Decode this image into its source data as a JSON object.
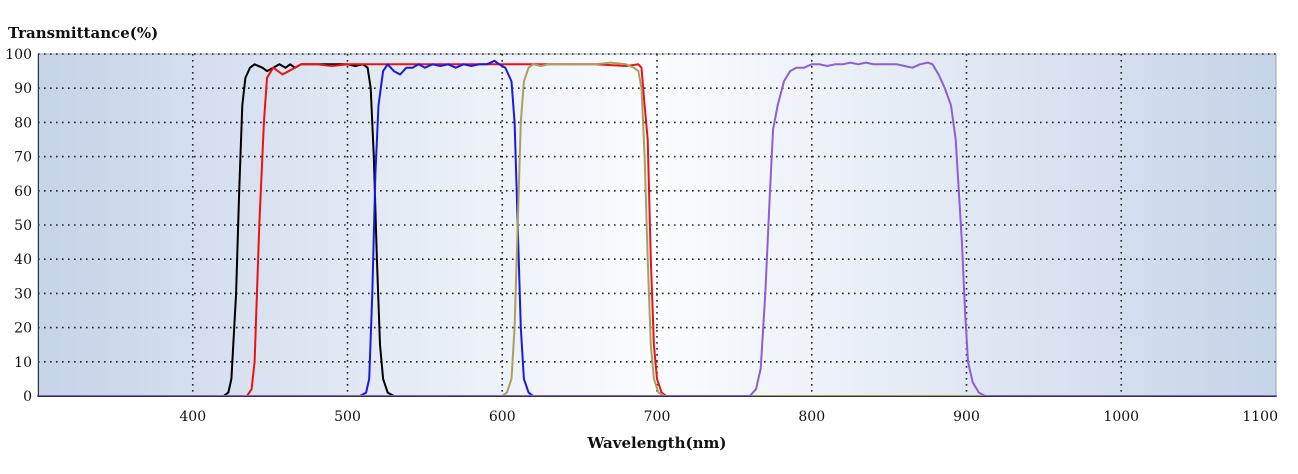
{
  "chart_data": {
    "type": "line",
    "ylabel": "Transmittance(%)",
    "xlabel": "Wavelength(nm)",
    "xlim": [
      300,
      1100
    ],
    "ylim": [
      0,
      100
    ],
    "xticks": [
      400,
      500,
      600,
      700,
      800,
      900,
      1000,
      1100
    ],
    "yticks": [
      0,
      10,
      20,
      30,
      40,
      50,
      60,
      70,
      80,
      90,
      100
    ],
    "grid": true,
    "legend": "none",
    "series": [
      {
        "color": "#000000",
        "points": [
          [
            300,
            0
          ],
          [
            420,
            0
          ],
          [
            423,
            1
          ],
          [
            425,
            5
          ],
          [
            428,
            30
          ],
          [
            430,
            60
          ],
          [
            432,
            85
          ],
          [
            434,
            93
          ],
          [
            437,
            96
          ],
          [
            440,
            97
          ],
          [
            445,
            96
          ],
          [
            448,
            95
          ],
          [
            452,
            96
          ],
          [
            456,
            97
          ],
          [
            460,
            96
          ],
          [
            463,
            97
          ],
          [
            466,
            96
          ],
          [
            470,
            97
          ],
          [
            480,
            97
          ],
          [
            490,
            97
          ],
          [
            500,
            97
          ],
          [
            505,
            96.5
          ],
          [
            510,
            97
          ],
          [
            513,
            96
          ],
          [
            515,
            90
          ],
          [
            517,
            70
          ],
          [
            519,
            40
          ],
          [
            521,
            15
          ],
          [
            523,
            5
          ],
          [
            526,
            1
          ],
          [
            530,
            0
          ],
          [
            1100,
            0
          ]
        ]
      },
      {
        "color": "#ee1111",
        "points": [
          [
            300,
            0
          ],
          [
            435,
            0
          ],
          [
            438,
            2
          ],
          [
            440,
            10
          ],
          [
            443,
            50
          ],
          [
            446,
            80
          ],
          [
            448,
            93
          ],
          [
            452,
            96
          ],
          [
            455,
            95
          ],
          [
            458,
            94
          ],
          [
            462,
            95
          ],
          [
            466,
            96
          ],
          [
            470,
            97
          ],
          [
            480,
            97
          ],
          [
            490,
            96.5
          ],
          [
            500,
            97
          ],
          [
            510,
            97
          ],
          [
            520,
            97
          ],
          [
            540,
            97
          ],
          [
            560,
            97
          ],
          [
            580,
            97
          ],
          [
            600,
            97
          ],
          [
            620,
            97
          ],
          [
            640,
            97
          ],
          [
            660,
            97
          ],
          [
            680,
            96.5
          ],
          [
            688,
            97
          ],
          [
            690,
            96
          ],
          [
            692,
            85
          ],
          [
            694,
            75
          ],
          [
            696,
            40
          ],
          [
            698,
            15
          ],
          [
            700,
            5
          ],
          [
            703,
            1
          ],
          [
            706,
            0
          ],
          [
            1100,
            0
          ]
        ]
      },
      {
        "color": "#1a1adf",
        "points": [
          [
            300,
            0
          ],
          [
            508,
            0
          ],
          [
            512,
            1
          ],
          [
            514,
            5
          ],
          [
            516,
            30
          ],
          [
            518,
            65
          ],
          [
            520,
            85
          ],
          [
            523,
            95
          ],
          [
            526,
            97
          ],
          [
            530,
            95
          ],
          [
            534,
            94
          ],
          [
            538,
            96
          ],
          [
            542,
            96
          ],
          [
            546,
            97
          ],
          [
            550,
            96
          ],
          [
            555,
            97
          ],
          [
            560,
            96.5
          ],
          [
            565,
            97
          ],
          [
            570,
            96
          ],
          [
            575,
            97
          ],
          [
            580,
            96.5
          ],
          [
            585,
            97
          ],
          [
            590,
            97
          ],
          [
            595,
            98
          ],
          [
            598,
            97
          ],
          [
            602,
            96
          ],
          [
            606,
            92
          ],
          [
            608,
            80
          ],
          [
            610,
            50
          ],
          [
            612,
            20
          ],
          [
            614,
            5
          ],
          [
            617,
            1
          ],
          [
            620,
            0
          ],
          [
            1100,
            0
          ]
        ]
      },
      {
        "color": "#a8a060",
        "points": [
          [
            300,
            0
          ],
          [
            600,
            0
          ],
          [
            603,
            1
          ],
          [
            606,
            5
          ],
          [
            608,
            20
          ],
          [
            610,
            50
          ],
          [
            612,
            80
          ],
          [
            614,
            92
          ],
          [
            617,
            96
          ],
          [
            620,
            97
          ],
          [
            625,
            96.5
          ],
          [
            630,
            97
          ],
          [
            640,
            97
          ],
          [
            650,
            97
          ],
          [
            660,
            97
          ],
          [
            670,
            97.5
          ],
          [
            680,
            97
          ],
          [
            685,
            96
          ],
          [
            688,
            95
          ],
          [
            690,
            90
          ],
          [
            692,
            70
          ],
          [
            694,
            40
          ],
          [
            696,
            15
          ],
          [
            698,
            5
          ],
          [
            701,
            1
          ],
          [
            705,
            0
          ],
          [
            1100,
            0
          ]
        ]
      },
      {
        "color": "#8c5fd6",
        "points": [
          [
            300,
            0
          ],
          [
            760,
            0
          ],
          [
            764,
            2
          ],
          [
            767,
            8
          ],
          [
            770,
            30
          ],
          [
            773,
            60
          ],
          [
            775,
            78
          ],
          [
            778,
            85
          ],
          [
            782,
            92
          ],
          [
            786,
            95
          ],
          [
            790,
            96
          ],
          [
            795,
            96
          ],
          [
            800,
            97
          ],
          [
            805,
            97
          ],
          [
            810,
            96.5
          ],
          [
            815,
            97
          ],
          [
            820,
            97
          ],
          [
            825,
            97.5
          ],
          [
            830,
            97
          ],
          [
            835,
            97.5
          ],
          [
            840,
            97
          ],
          [
            845,
            97
          ],
          [
            850,
            97
          ],
          [
            855,
            97
          ],
          [
            860,
            96.5
          ],
          [
            865,
            96
          ],
          [
            870,
            97
          ],
          [
            875,
            97.5
          ],
          [
            878,
            97
          ],
          [
            882,
            94
          ],
          [
            886,
            90
          ],
          [
            890,
            85
          ],
          [
            893,
            75
          ],
          [
            895,
            60
          ],
          [
            897,
            45
          ],
          [
            899,
            25
          ],
          [
            901,
            10
          ],
          [
            904,
            4
          ],
          [
            908,
            1
          ],
          [
            912,
            0
          ],
          [
            1100,
            0
          ]
        ]
      }
    ]
  }
}
